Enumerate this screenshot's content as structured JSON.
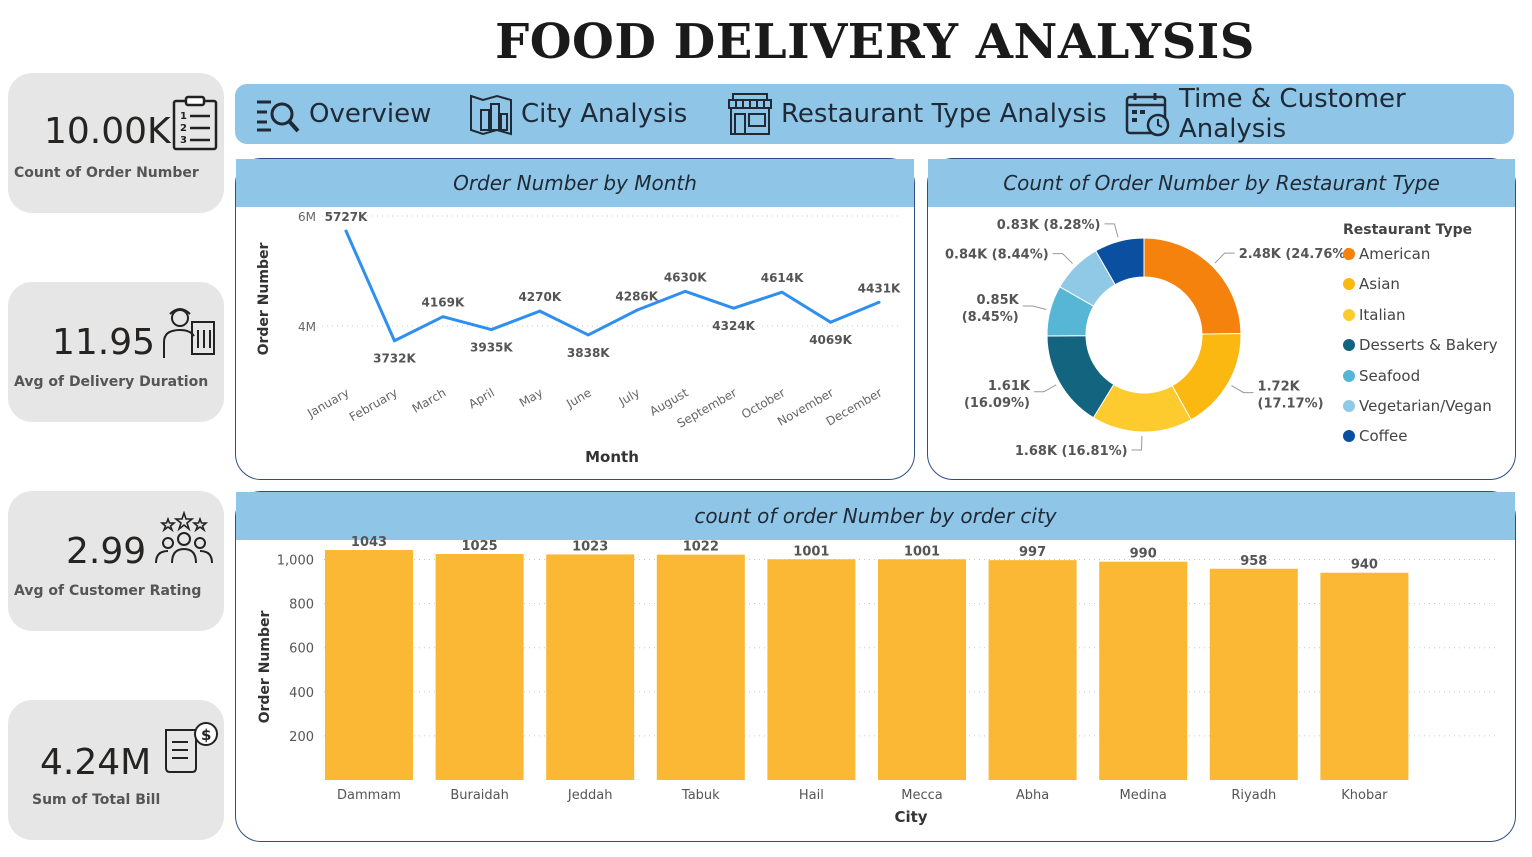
{
  "title": "FOOD DELIVERY ANALYSIS",
  "kpis": [
    {
      "value": "10.00K",
      "label": "Count of Order Number",
      "icon": "clipboard-list-icon"
    },
    {
      "value": "11.95",
      "label": "Avg of Delivery Duration",
      "icon": "delivery-person-icon"
    },
    {
      "value": "2.99",
      "label": "Avg of Customer Rating",
      "icon": "customer-rating-icon"
    },
    {
      "value": "4.24M",
      "label": "Sum of Total Bill",
      "icon": "bill-icon"
    }
  ],
  "nav": [
    {
      "label": "Overview",
      "icon": "search-list-icon"
    },
    {
      "label": "City Analysis",
      "icon": "city-map-icon"
    },
    {
      "label": "Restaurant Type Analysis",
      "icon": "storefront-icon"
    },
    {
      "label": "Time & Customer Analysis",
      "icon": "calendar-clock-icon"
    }
  ],
  "colors": {
    "accent": "#8fc5e6",
    "border": "#2b4f85",
    "line": "#2e8ff0",
    "bar": "#fbb834"
  },
  "chart_data": [
    {
      "type": "line",
      "title": "Order Number by Month",
      "xlabel": "Month",
      "ylabel": "Order Number",
      "categories": [
        "January",
        "February",
        "March",
        "April",
        "May",
        "June",
        "July",
        "August",
        "September",
        "October",
        "November",
        "December"
      ],
      "values": [
        5727,
        3732,
        4169,
        3935,
        4270,
        3838,
        4286,
        4630,
        4324,
        4614,
        4069,
        4431
      ],
      "data_labels": [
        "5727K",
        "3732K",
        "4169K",
        "3935K",
        "4270K",
        "3838K",
        "4286K",
        "4630K",
        "4324K",
        "4614K",
        "4069K",
        "4431K"
      ],
      "yticks": [
        4000,
        6000
      ],
      "ytick_labels": [
        "4M",
        "6M"
      ],
      "ylim": [
        3000,
        6000
      ],
      "grid": true
    },
    {
      "type": "pie",
      "title": "Count of Order Number by Restaurant Type",
      "legend_title": "Restaurant Type",
      "legend": "right",
      "donut": true,
      "labels": [
        "American",
        "Asian",
        "Italian",
        "Desserts & Bakery",
        "Seafood",
        "Vegetarian/Vegan",
        "Coffee"
      ],
      "values": [
        24.76,
        17.17,
        16.81,
        16.09,
        8.45,
        8.44,
        8.28
      ],
      "data_labels": [
        "2.48K (24.76%)",
        "1.72K (17.17%)",
        "1.68K (16.81%)",
        "1.61K (16.09%)",
        "0.85K (8.45%)",
        "0.84K (8.44%)",
        "0.83K (8.28%)"
      ],
      "colors": [
        "#f5820d",
        "#fbb810",
        "#fdcb2d",
        "#12647f",
        "#57b5d6",
        "#8fc9e6",
        "#0a4fa0"
      ]
    },
    {
      "type": "bar",
      "title": "count of order Number by order city",
      "xlabel": "City",
      "ylabel": "Order Number",
      "categories": [
        "Dammam",
        "Buraidah",
        "Jeddah",
        "Tabuk",
        "Hail",
        "Mecca",
        "Abha",
        "Medina",
        "Riyadh",
        "Khobar"
      ],
      "values": [
        1043,
        1025,
        1023,
        1022,
        1001,
        1001,
        997,
        990,
        958,
        940
      ],
      "yticks": [
        200,
        400,
        600,
        800,
        1000
      ],
      "ytick_labels": [
        "200",
        "400",
        "600",
        "800",
        "1,000"
      ],
      "ylim": [
        0,
        1100
      ],
      "grid": true
    }
  ]
}
